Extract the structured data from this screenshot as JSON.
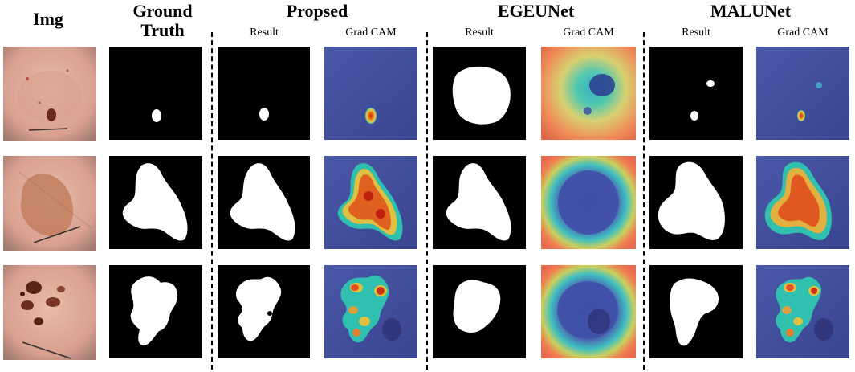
{
  "headers": {
    "img": "Img",
    "ground_truth_line1": "Ground",
    "ground_truth_line2": "Truth",
    "proposed": "Propsed",
    "egeunet": "EGEUNet",
    "malunet": "MALUNet"
  },
  "subheaders": {
    "proposed_result": "Result",
    "proposed_gradcam": "Grad CAM",
    "egeunet_result": "Result",
    "egeunet_gradcam": "Grad CAM",
    "malunet_result": "Result",
    "malunet_gradcam": "Grad CAM"
  },
  "rows": [
    {
      "id": "sample-1",
      "description": "small dark lesion"
    },
    {
      "id": "sample-2",
      "description": "large irregular lesion"
    },
    {
      "id": "sample-3",
      "description": "fragmented dark lesion"
    }
  ],
  "colors": {
    "mask_background": "#000000",
    "mask_foreground": "#ffffff",
    "skin_tone": "#e4b0a0",
    "heatmap_cool": "#3a4aa0",
    "heatmap_hot": "#e03020"
  }
}
